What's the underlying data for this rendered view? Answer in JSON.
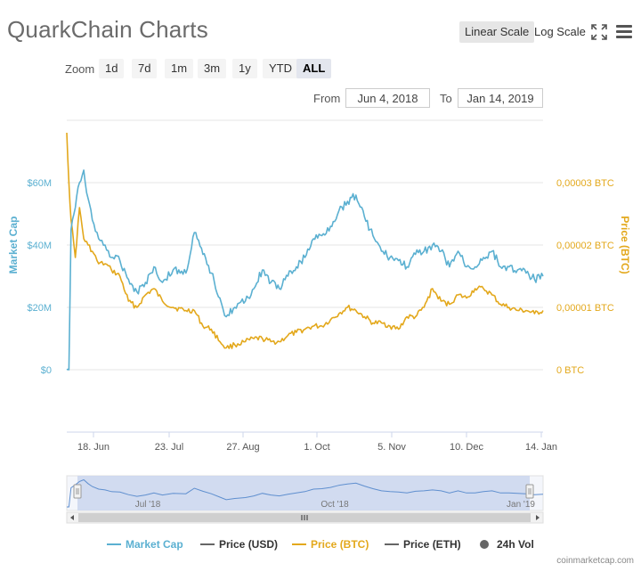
{
  "header": {
    "title": "QuarkChain Charts",
    "linear_label": "Linear Scale",
    "log_label": "Log Scale"
  },
  "zoom": {
    "label": "Zoom",
    "buttons": [
      "1d",
      "7d",
      "1m",
      "3m",
      "1y",
      "YTD",
      "ALL"
    ],
    "active": "ALL"
  },
  "range": {
    "from_label": "From",
    "from_value": "Jun 4, 2018",
    "to_label": "To",
    "to_value": "Jan 14, 2019"
  },
  "legend": [
    {
      "label": "Market Cap",
      "color": "#5bb0d1"
    },
    {
      "label": "Price (USD)",
      "color": "#666666"
    },
    {
      "label": "Price (BTC)",
      "color": "#e3a81c"
    },
    {
      "label": "Price (ETH)",
      "color": "#666666"
    },
    {
      "label": "24h Vol",
      "color": "#666666"
    }
  ],
  "footer": "coinmarketcap.com",
  "colors": {
    "market_cap": "#5bb0d1",
    "price_btc": "#e3a81c",
    "navigator_fill": "#c8d5ee"
  },
  "chart_data": {
    "type": "line",
    "x_start": "2018-06-04",
    "x_end": "2019-01-14",
    "x_ticks": [
      "18. Jun",
      "23. Jul",
      "27. Aug",
      "1. Oct",
      "5. Nov",
      "10. Dec",
      "14. Jan"
    ],
    "y_left": {
      "label": "Market Cap",
      "ticks": [
        "$0",
        "$20M",
        "$40M",
        "$60M"
      ],
      "range": [
        0,
        60000000
      ]
    },
    "y_right": {
      "label": "Price (BTC)",
      "ticks": [
        "0 BTC",
        "0,00001 BTC",
        "0,00002 BTC",
        "0,00003 BTC"
      ],
      "range": [
        0,
        3e-05
      ]
    },
    "navigator_labels": [
      "Jul '18",
      "Oct '18",
      "Jan '19"
    ],
    "series": [
      {
        "name": "Market Cap",
        "axis": "left",
        "points": [
          [
            "2018-06-04",
            0
          ],
          [
            "2018-06-05",
            0
          ],
          [
            "2018-06-06",
            45000000
          ],
          [
            "2018-06-08",
            52000000
          ],
          [
            "2018-06-10",
            60000000
          ],
          [
            "2018-06-12",
            64000000
          ],
          [
            "2018-06-14",
            55000000
          ],
          [
            "2018-06-16",
            48000000
          ],
          [
            "2018-06-19",
            42000000
          ],
          [
            "2018-06-22",
            40000000
          ],
          [
            "2018-06-25",
            36000000
          ],
          [
            "2018-06-29",
            35000000
          ],
          [
            "2018-07-03",
            29000000
          ],
          [
            "2018-07-07",
            25000000
          ],
          [
            "2018-07-11",
            28000000
          ],
          [
            "2018-07-15",
            33000000
          ],
          [
            "2018-07-19",
            28000000
          ],
          [
            "2018-07-24",
            32000000
          ],
          [
            "2018-07-30",
            31000000
          ],
          [
            "2018-08-03",
            44000000
          ],
          [
            "2018-08-07",
            37000000
          ],
          [
            "2018-08-11",
            31000000
          ],
          [
            "2018-08-15",
            23000000
          ],
          [
            "2018-08-18",
            17000000
          ],
          [
            "2018-08-22",
            20000000
          ],
          [
            "2018-08-27",
            22000000
          ],
          [
            "2018-08-31",
            26000000
          ],
          [
            "2018-09-04",
            32000000
          ],
          [
            "2018-09-08",
            28000000
          ],
          [
            "2018-09-12",
            26000000
          ],
          [
            "2018-09-16",
            30000000
          ],
          [
            "2018-09-20",
            33000000
          ],
          [
            "2018-09-24",
            36000000
          ],
          [
            "2018-09-28",
            42000000
          ],
          [
            "2018-10-02",
            43000000
          ],
          [
            "2018-10-06",
            46000000
          ],
          [
            "2018-10-10",
            51000000
          ],
          [
            "2018-10-14",
            54000000
          ],
          [
            "2018-10-18",
            56000000
          ],
          [
            "2018-10-22",
            49000000
          ],
          [
            "2018-10-26",
            43000000
          ],
          [
            "2018-10-30",
            38000000
          ],
          [
            "2018-11-03",
            36000000
          ],
          [
            "2018-11-07",
            35000000
          ],
          [
            "2018-11-11",
            33000000
          ],
          [
            "2018-11-15",
            37000000
          ],
          [
            "2018-11-19",
            38000000
          ],
          [
            "2018-11-23",
            40000000
          ],
          [
            "2018-11-27",
            38000000
          ],
          [
            "2018-12-01",
            33000000
          ],
          [
            "2018-12-05",
            38000000
          ],
          [
            "2018-12-09",
            33000000
          ],
          [
            "2018-12-13",
            33000000
          ],
          [
            "2018-12-17",
            36000000
          ],
          [
            "2018-12-21",
            38000000
          ],
          [
            "2018-12-25",
            33000000
          ],
          [
            "2018-12-29",
            33000000
          ],
          [
            "2019-01-02",
            32000000
          ],
          [
            "2019-01-06",
            31000000
          ],
          [
            "2019-01-10",
            29000000
          ],
          [
            "2019-01-14",
            30000000
          ]
        ]
      },
      {
        "name": "Price (BTC)",
        "axis": "right",
        "points": [
          [
            "2018-06-04",
            3.8e-05
          ],
          [
            "2018-06-05",
            3e-05
          ],
          [
            "2018-06-06",
            2.4e-05
          ],
          [
            "2018-06-08",
            1.8e-05
          ],
          [
            "2018-06-10",
            2.6e-05
          ],
          [
            "2018-06-12",
            2.1e-05
          ],
          [
            "2018-06-14",
            2e-05
          ],
          [
            "2018-06-16",
            1.9e-05
          ],
          [
            "2018-06-19",
            1.7e-05
          ],
          [
            "2018-06-22",
            1.7e-05
          ],
          [
            "2018-06-25",
            1.6e-05
          ],
          [
            "2018-06-29",
            1.5e-05
          ],
          [
            "2018-07-03",
            1.1e-05
          ],
          [
            "2018-07-07",
            1e-05
          ],
          [
            "2018-07-11",
            1.2e-05
          ],
          [
            "2018-07-15",
            1.3e-05
          ],
          [
            "2018-07-19",
            1.1e-05
          ],
          [
            "2018-07-24",
            1e-05
          ],
          [
            "2018-07-30",
            9.5e-06
          ],
          [
            "2018-08-03",
            9.5e-06
          ],
          [
            "2018-08-07",
            7e-06
          ],
          [
            "2018-08-11",
            6.5e-06
          ],
          [
            "2018-08-15",
            4.5e-06
          ],
          [
            "2018-08-18",
            3.5e-06
          ],
          [
            "2018-08-22",
            4e-06
          ],
          [
            "2018-08-27",
            4.5e-06
          ],
          [
            "2018-08-31",
            5e-06
          ],
          [
            "2018-09-04",
            5e-06
          ],
          [
            "2018-09-08",
            4.5e-06
          ],
          [
            "2018-09-12",
            4.5e-06
          ],
          [
            "2018-09-16",
            5.5e-06
          ],
          [
            "2018-09-20",
            6e-06
          ],
          [
            "2018-09-24",
            6.5e-06
          ],
          [
            "2018-09-28",
            7e-06
          ],
          [
            "2018-10-02",
            7e-06
          ],
          [
            "2018-10-06",
            8e-06
          ],
          [
            "2018-10-10",
            9e-06
          ],
          [
            "2018-10-14",
            1e-05
          ],
          [
            "2018-10-18",
            9.5e-06
          ],
          [
            "2018-10-22",
            8.5e-06
          ],
          [
            "2018-10-26",
            7.5e-06
          ],
          [
            "2018-10-30",
            7.5e-06
          ],
          [
            "2018-11-03",
            7e-06
          ],
          [
            "2018-11-07",
            6.5e-06
          ],
          [
            "2018-11-11",
            8.5e-06
          ],
          [
            "2018-11-15",
            8.5e-06
          ],
          [
            "2018-11-19",
            1e-05
          ],
          [
            "2018-11-23",
            1.3e-05
          ],
          [
            "2018-11-27",
            1.1e-05
          ],
          [
            "2018-12-01",
            1.05e-05
          ],
          [
            "2018-12-05",
            1.2e-05
          ],
          [
            "2018-12-09",
            1.15e-05
          ],
          [
            "2018-12-13",
            1.3e-05
          ],
          [
            "2018-12-17",
            1.3e-05
          ],
          [
            "2018-12-21",
            1.2e-05
          ],
          [
            "2018-12-25",
            1.05e-05
          ],
          [
            "2018-12-29",
            1e-05
          ],
          [
            "2019-01-02",
            9.5e-06
          ],
          [
            "2019-01-06",
            9.5e-06
          ],
          [
            "2019-01-10",
            9e-06
          ],
          [
            "2019-01-14",
            9.5e-06
          ]
        ]
      }
    ]
  }
}
